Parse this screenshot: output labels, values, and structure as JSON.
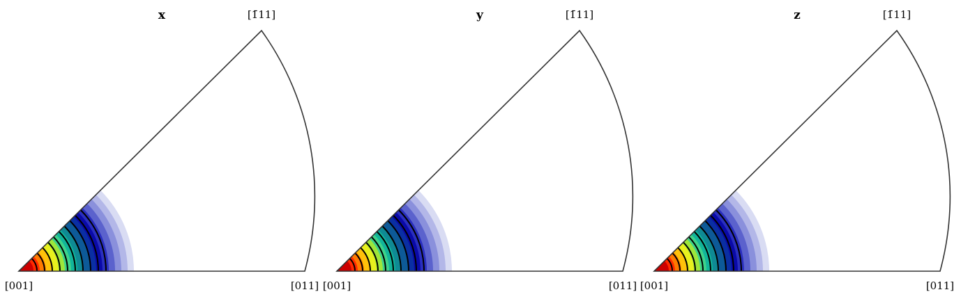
{
  "panels": [
    {
      "title": "x",
      "labels": {
        "origin": "[001]",
        "right": "[011]",
        "top": "[1̄11]"
      }
    },
    {
      "title": "y",
      "labels": {
        "origin": "[001]",
        "right": "[011]",
        "top": "[1̄11]"
      }
    },
    {
      "title": "z",
      "labels": {
        "origin": "[001]",
        "right": "[011]",
        "top": "[1̄11]"
      }
    }
  ],
  "colors": {
    "outline": "#333333",
    "contour_line": "#000000",
    "bands": [
      "#d9dcf3",
      "#b3b7e8",
      "#8a90dc",
      "#5b62cd",
      "#2a2fbf",
      "#0a0aa8",
      "#0a2fa3",
      "#0d5a98",
      "#0f8a94",
      "#12b59a",
      "#3fd28a",
      "#9ee63a",
      "#e8f01e",
      "#ffc20a",
      "#ff7a00",
      "#ff2a00",
      "#cc0000"
    ]
  }
}
